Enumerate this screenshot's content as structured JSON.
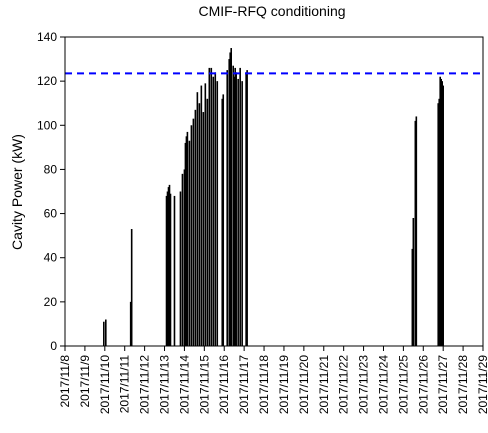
{
  "chart_data": {
    "type": "bar",
    "title": "CMIF-RFQ conditioning",
    "y_label": "Cavity Power (kW)",
    "color": "#000000",
    "x": [
      9.95,
      10.05,
      11.3,
      11.35,
      13.1,
      13.15,
      13.2,
      13.25,
      13.3,
      13.5,
      13.8,
      13.9,
      14.0,
      14.05,
      14.1,
      14.15,
      14.25,
      14.35,
      14.45,
      14.55,
      14.65,
      14.75,
      14.85,
      14.95,
      15.05,
      15.15,
      15.25,
      15.35,
      15.45,
      15.55,
      15.65,
      15.9,
      15.95,
      16.15,
      16.25,
      16.3,
      16.35,
      16.45,
      16.5,
      16.55,
      16.6,
      16.7,
      16.8,
      16.9,
      17.1,
      17.15,
      25.45,
      25.5,
      25.6,
      25.65,
      26.75,
      26.8,
      26.85,
      26.9,
      26.95,
      27.0
    ],
    "values": [
      11,
      12,
      20,
      53,
      68,
      70,
      72,
      73,
      69,
      68,
      70,
      78,
      80,
      92,
      95,
      97,
      93,
      100,
      103,
      107,
      115,
      110,
      118,
      106,
      119,
      112,
      126,
      126,
      122,
      124,
      120,
      112,
      114,
      125,
      130,
      133,
      135,
      127,
      122,
      126,
      124,
      121,
      126,
      120,
      124,
      125,
      44,
      58,
      102,
      104,
      110,
      112,
      122,
      121,
      120,
      118
    ],
    "reference_line": {
      "value": 123.5,
      "color": "#0000ff",
      "style": "dashed"
    },
    "xlim": [
      8,
      29
    ],
    "xticks": [
      {
        "value": 8,
        "label": "2017/11/8"
      },
      {
        "value": 9,
        "label": "2017/11/9"
      },
      {
        "value": 10,
        "label": "2017/11/10"
      },
      {
        "value": 11,
        "label": "2017/11/11"
      },
      {
        "value": 12,
        "label": "2017/11/12"
      },
      {
        "value": 13,
        "label": "2017/11/13"
      },
      {
        "value": 14,
        "label": "2017/11/14"
      },
      {
        "value": 15,
        "label": "2017/11/15"
      },
      {
        "value": 16,
        "label": "2017/11/16"
      },
      {
        "value": 17,
        "label": "2017/11/17"
      },
      {
        "value": 18,
        "label": "2017/11/18"
      },
      {
        "value": 19,
        "label": "2017/11/19"
      },
      {
        "value": 20,
        "label": "2017/11/20"
      },
      {
        "value": 21,
        "label": "2017/11/21"
      },
      {
        "value": 22,
        "label": "2017/11/22"
      },
      {
        "value": 23,
        "label": "2017/11/23"
      },
      {
        "value": 24,
        "label": "2017/11/24"
      },
      {
        "value": 25,
        "label": "2017/11/25"
      },
      {
        "value": 26,
        "label": "2017/11/26"
      },
      {
        "value": 27,
        "label": "2017/11/27"
      },
      {
        "value": 28,
        "label": "2017/11/28"
      },
      {
        "value": 29,
        "label": "2017/11/29"
      }
    ],
    "ylim": [
      0,
      140
    ],
    "yticks": [
      0,
      20,
      40,
      60,
      80,
      100,
      120,
      140
    ]
  }
}
